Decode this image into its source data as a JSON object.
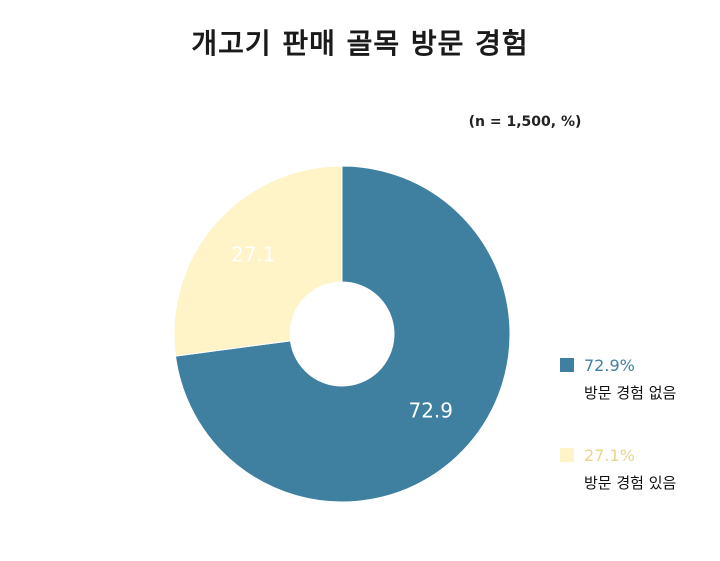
{
  "chart_data": {
    "type": "pie",
    "title": "개고기 판매 골목 방문 경험",
    "note": "(n = 1,500, %)",
    "labels": [
      "방문 경험 없음",
      "방문 경험 있음"
    ],
    "values": [
      72.9,
      27.1
    ],
    "value_labels": [
      "72.9",
      "27.1"
    ],
    "legend_values": [
      "72.9%",
      "27.1%"
    ],
    "colors": [
      "#3f80a0",
      "#fff3c8"
    ],
    "label_colors": [
      "#ffffff",
      "#ffffff"
    ],
    "legend_value_colors": [
      "#3f80a0",
      "#e8d48a"
    ],
    "start_angle_deg": 0,
    "direction": "clockwise",
    "legend_position": "right"
  }
}
